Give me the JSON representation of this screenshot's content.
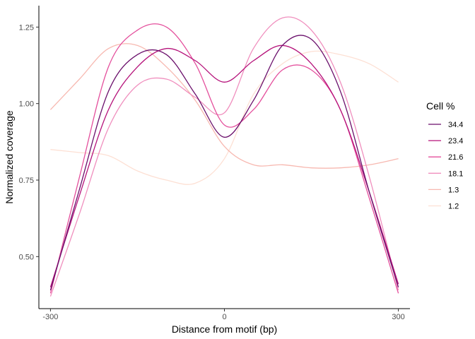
{
  "chart_data": {
    "type": "line",
    "title": "",
    "xlabel": "Distance from motif (bp)",
    "ylabel": "Normalized coverage",
    "xlim": [
      -320,
      320
    ],
    "ylim": [
      0.33,
      1.32
    ],
    "x_ticks": [
      -300,
      0,
      300
    ],
    "x_tick_labels": [
      "-300",
      "0",
      "300"
    ],
    "y_ticks": [
      0.5,
      0.75,
      1.0,
      1.25
    ],
    "y_tick_labels": [
      "0.50",
      "0.75",
      "1.00",
      "1.25"
    ],
    "grid": false,
    "legend": {
      "title": "Cell %",
      "position": "right"
    },
    "series": [
      {
        "name": "34.4",
        "color": "#6a0f6b",
        "x": [
          -300,
          -250,
          -200,
          -150,
          -100,
          -50,
          0,
          50,
          100,
          150,
          200,
          250,
          300
        ],
        "y": [
          0.39,
          0.72,
          1.04,
          1.16,
          1.16,
          1.03,
          0.89,
          1.01,
          1.19,
          1.21,
          1.04,
          0.71,
          0.4
        ]
      },
      {
        "name": "23.4",
        "color": "#b5127a",
        "x": [
          -300,
          -250,
          -200,
          -150,
          -100,
          -50,
          0,
          50,
          100,
          150,
          200,
          250,
          300
        ],
        "y": [
          0.4,
          0.7,
          0.98,
          1.12,
          1.18,
          1.14,
          1.07,
          1.14,
          1.19,
          1.13,
          0.98,
          0.71,
          0.41
        ]
      },
      {
        "name": "21.6",
        "color": "#e44f9c",
        "x": [
          -300,
          -250,
          -200,
          -150,
          -100,
          -50,
          0,
          50,
          100,
          150,
          200,
          250,
          300
        ],
        "y": [
          0.38,
          0.76,
          1.12,
          1.24,
          1.25,
          1.13,
          0.93,
          0.98,
          1.11,
          1.11,
          0.98,
          0.69,
          0.38
        ]
      },
      {
        "name": "18.1",
        "color": "#f08fbe",
        "x": [
          -300,
          -250,
          -200,
          -150,
          -100,
          -50,
          0,
          50,
          100,
          150,
          200,
          250,
          300
        ],
        "y": [
          0.37,
          0.64,
          0.92,
          1.06,
          1.08,
          1.02,
          0.97,
          1.18,
          1.28,
          1.24,
          1.07,
          0.76,
          0.39
        ]
      },
      {
        "name": "1.3",
        "color": "#f7b8b0",
        "x": [
          -300,
          -250,
          -200,
          -150,
          -100,
          -50,
          0,
          50,
          100,
          150,
          200,
          250,
          300
        ],
        "y": [
          0.98,
          1.08,
          1.18,
          1.19,
          1.12,
          1.01,
          0.86,
          0.8,
          0.8,
          0.79,
          0.79,
          0.8,
          0.82
        ]
      },
      {
        "name": "1.2",
        "color": "#fde0d4",
        "x": [
          -300,
          -250,
          -200,
          -150,
          -100,
          -50,
          0,
          50,
          100,
          150,
          200,
          250,
          300
        ],
        "y": [
          0.85,
          0.84,
          0.83,
          0.78,
          0.75,
          0.74,
          0.82,
          1.03,
          1.13,
          1.17,
          1.16,
          1.13,
          1.07
        ]
      }
    ]
  }
}
